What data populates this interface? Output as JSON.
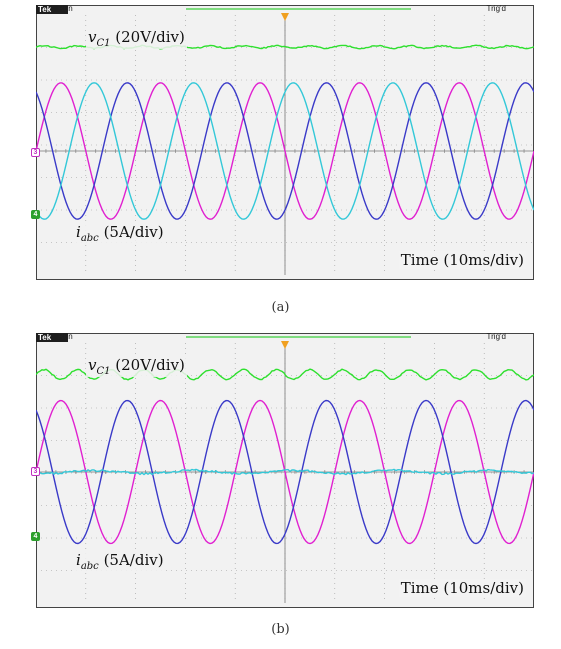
{
  "header": {
    "brand": "Tek",
    "status": "Run",
    "trigger": "Trig'd"
  },
  "panels": [
    {
      "id": "a",
      "caption": "(a)",
      "voltage_label_sym": "v",
      "voltage_label_sub": "C1",
      "voltage_label_scale": "(20V/div)",
      "current_label_sym": "i",
      "current_label_sub": "abc",
      "current_label_scale": "(5A/div)",
      "time_label": "Time (10ms/div)"
    },
    {
      "id": "b",
      "caption": "(b)",
      "voltage_label_sym": "v",
      "voltage_label_sub": "C1",
      "voltage_label_scale": "(20V/div)",
      "current_label_sym": "i",
      "current_label_sub": "abc",
      "current_label_scale": "(5A/div)",
      "time_label": "Time (10ms/div)"
    }
  ],
  "colors": {
    "voltage": "#2ee02e",
    "phase_a": "#e020d0",
    "phase_b": "#3a3ac8",
    "phase_c": "#33c8d8",
    "grid": "#9a9a9a"
  },
  "chart_data": [
    {
      "type": "line",
      "grid_divisions": [
        10,
        8
      ],
      "series": [
        {
          "kind": "voltage",
          "level_div": 3.2,
          "ripple_div": 0.04
        },
        {
          "kind": "current",
          "amplitude_div": 2.1,
          "period_div": 2.0,
          "phase_deg": 0
        },
        {
          "kind": "current",
          "amplitude_div": 2.1,
          "period_div": 2.0,
          "phase_deg": 120
        },
        {
          "kind": "current",
          "amplitude_div": 2.1,
          "period_div": 2.0,
          "phase_deg": 240
        }
      ]
    },
    {
      "type": "line",
      "grid_divisions": [
        10,
        8
      ],
      "series": [
        {
          "kind": "voltage",
          "level_div": 3.0,
          "ripple_div": 0.15
        },
        {
          "kind": "current",
          "amplitude_div": 2.2,
          "period_div": 2.0,
          "phase_deg": 0
        },
        {
          "kind": "current",
          "amplitude_div": 2.2,
          "period_div": 2.0,
          "phase_deg": 120
        },
        {
          "kind": "current",
          "amplitude_div": 0.05,
          "period_div": 2.0,
          "phase_deg": 240
        }
      ]
    }
  ]
}
